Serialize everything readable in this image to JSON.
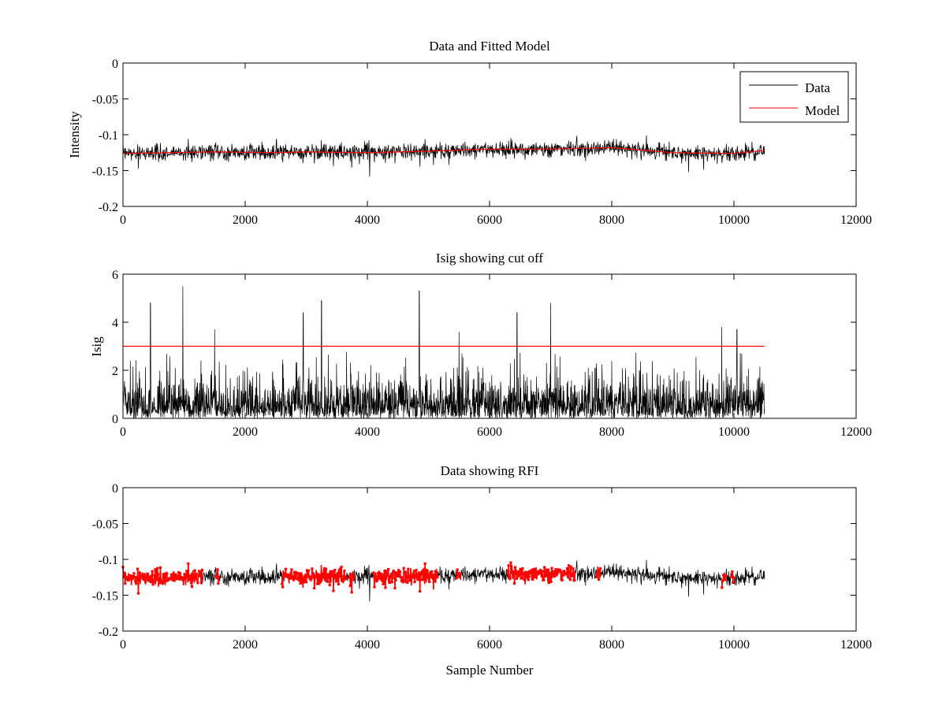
{
  "colors": {
    "data": "#000000",
    "model": "#ff0000",
    "rfi": "#ff0000",
    "cutoff": "#ff0000",
    "axes": "#000000",
    "background": "#ffffff"
  },
  "chart_data": [
    {
      "type": "line",
      "title": "Data and Fitted Model",
      "xlabel": "",
      "ylabel": "Intensity",
      "xlim": [
        0,
        12000
      ],
      "ylim": [
        -0.2,
        0
      ],
      "x_ticks": [
        0,
        2000,
        4000,
        6000,
        8000,
        10000,
        12000
      ],
      "x_tick_labels": [
        "0",
        "2000",
        "4000",
        "6000",
        "8000",
        "10000",
        "12000"
      ],
      "y_ticks": [
        0,
        -0.05,
        -0.1,
        -0.15,
        -0.2
      ],
      "y_tick_labels": [
        "0",
        "-0.05",
        "-0.1",
        "-0.15",
        "-0.2"
      ],
      "grid": false,
      "legend": {
        "position": "top-right",
        "entries": [
          "Data",
          "Model"
        ]
      },
      "series": [
        {
          "name": "Data",
          "color": "#000000",
          "kind": "noisy",
          "x_range": [
            0,
            10500
          ],
          "baseline": [
            [
              0,
              -0.126
            ],
            [
              1500,
              -0.124
            ],
            [
              2500,
              -0.125
            ],
            [
              3000,
              -0.124
            ],
            [
              4000,
              -0.125
            ],
            [
              5000,
              -0.123
            ],
            [
              6000,
              -0.12
            ],
            [
              7000,
              -0.12
            ],
            [
              8000,
              -0.118
            ],
            [
              9000,
              -0.125
            ],
            [
              10000,
              -0.126
            ],
            [
              10500,
              -0.122
            ]
          ],
          "noise_sigma": 0.006,
          "min": -0.165,
          "max": -0.097
        },
        {
          "name": "Model",
          "color": "#ff0000",
          "x": [
            0,
            1500,
            2500,
            3000,
            4000,
            5000,
            6000,
            7000,
            8000,
            9000,
            10000,
            10500
          ],
          "y": [
            -0.126,
            -0.124,
            -0.125,
            -0.124,
            -0.125,
            -0.123,
            -0.12,
            -0.12,
            -0.118,
            -0.125,
            -0.126,
            -0.122
          ]
        }
      ]
    },
    {
      "type": "line",
      "title": "Isig showing cut off",
      "xlabel": "",
      "ylabel": "Isig",
      "xlim": [
        0,
        12000
      ],
      "ylim": [
        0,
        6
      ],
      "x_ticks": [
        0,
        2000,
        4000,
        6000,
        8000,
        10000,
        12000
      ],
      "x_tick_labels": [
        "0",
        "2000",
        "4000",
        "6000",
        "8000",
        "10000",
        "12000"
      ],
      "y_ticks": [
        0,
        2,
        4,
        6
      ],
      "y_tick_labels": [
        "0",
        "2",
        "4",
        "6"
      ],
      "grid": false,
      "series": [
        {
          "color": "#000000",
          "kind": "abs-noise",
          "x_range": [
            0,
            10500
          ],
          "typical_max": 2.5,
          "peaks": [
            [
              450,
              4.8
            ],
            [
              980,
              5.5
            ],
            [
              1500,
              3.7
            ],
            [
              2950,
              4.4
            ],
            [
              3250,
              4.9
            ],
            [
              4850,
              5.3
            ],
            [
              5500,
              3.6
            ],
            [
              6450,
              4.4
            ],
            [
              7000,
              4.8
            ],
            [
              9800,
              3.8
            ],
            [
              10050,
              3.7
            ]
          ]
        },
        {
          "color": "#ff0000",
          "kind": "cutoff",
          "x": [
            0,
            10500
          ],
          "y": [
            3,
            3
          ]
        }
      ]
    },
    {
      "type": "scatter",
      "title": "Data showing RFI",
      "xlabel": "Sample Number",
      "ylabel": "",
      "xlim": [
        0,
        12000
      ],
      "ylim": [
        -0.2,
        0
      ],
      "x_ticks": [
        0,
        2000,
        4000,
        6000,
        8000,
        10000,
        12000
      ],
      "x_tick_labels": [
        "0",
        "2000",
        "4000",
        "6000",
        "8000",
        "10000",
        "12000"
      ],
      "y_ticks": [
        0,
        -0.05,
        -0.1,
        -0.15,
        -0.2
      ],
      "y_tick_labels": [
        "0",
        "-0.05",
        "-0.1",
        "-0.15",
        "-0.2"
      ],
      "grid": false,
      "series": [
        {
          "color": "#000000",
          "kind": "noisy-line",
          "x_range": [
            0,
            10500
          ]
        },
        {
          "color": "#ff0000",
          "kind": "flagged-points",
          "flagged_ranges": [
            [
              0,
              1300
            ],
            [
              1520,
              1580
            ],
            [
              2600,
              3650
            ],
            [
              3700,
              3780
            ],
            [
              4100,
              5150
            ],
            [
              5450,
              5530
            ],
            [
              6300,
              7400
            ],
            [
              7750,
              7820
            ],
            [
              9800,
              9870
            ],
            [
              9950,
              10000
            ]
          ]
        }
      ]
    }
  ]
}
